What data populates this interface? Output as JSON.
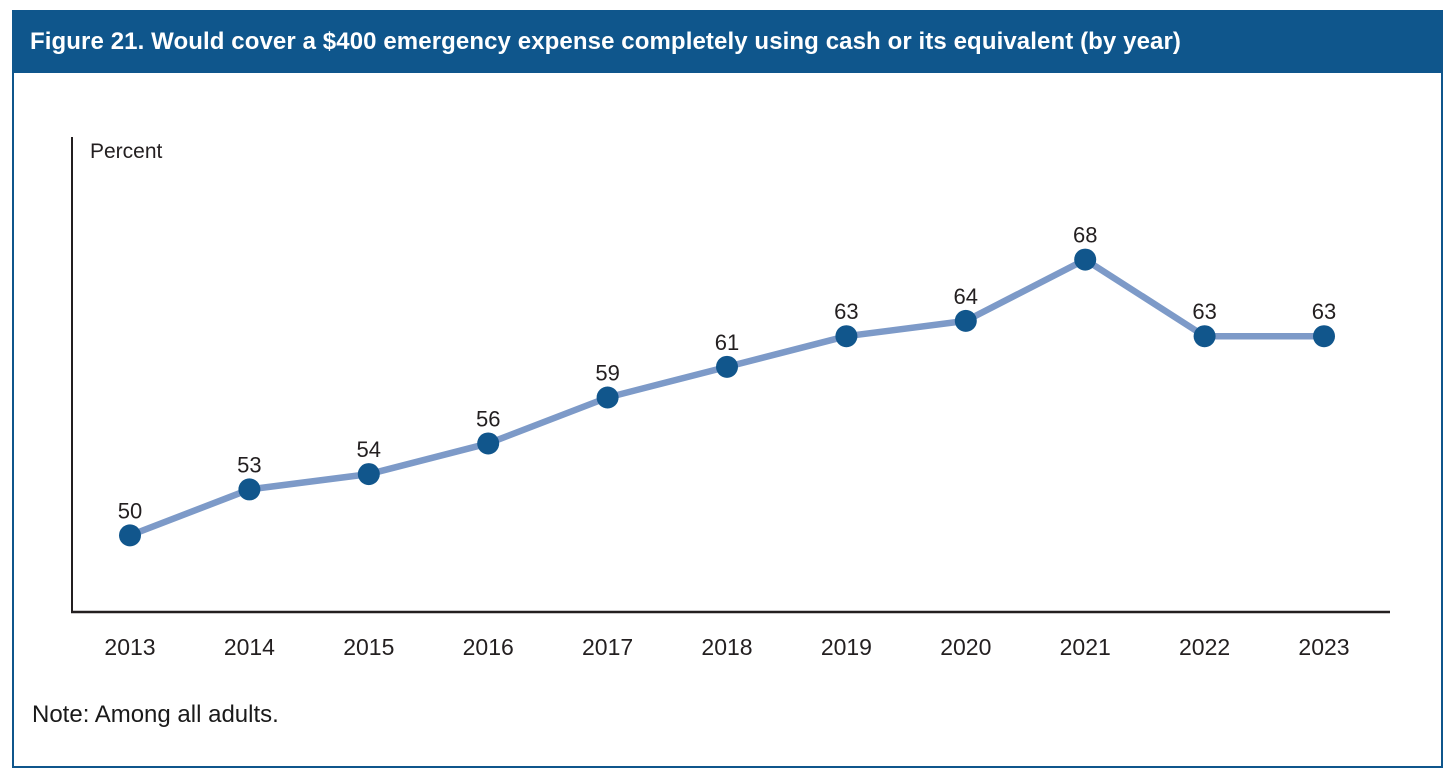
{
  "figure": {
    "title": "Figure 21. Would cover a $400 emergency expense completely using cash or its equivalent (by year)",
    "note": "Note: Among all adults."
  },
  "colors": {
    "header_bg": "#0F568C",
    "header_text": "#FFFFFF",
    "border": "#0F568C",
    "line": "#7D9AC8",
    "point": "#11568C",
    "axis": "#231F20",
    "label": "#231F20"
  },
  "chart_data": {
    "type": "line",
    "title": "Figure 21. Would cover a $400 emergency expense completely using cash or its equivalent (by year)",
    "xlabel": "",
    "ylabel": "Percent",
    "categories": [
      "2013",
      "2014",
      "2015",
      "2016",
      "2017",
      "2018",
      "2019",
      "2020",
      "2021",
      "2022",
      "2023"
    ],
    "values": [
      50,
      53,
      54,
      56,
      59,
      61,
      63,
      64,
      68,
      63,
      63
    ],
    "ylim": [
      45,
      76
    ],
    "grid": false,
    "legend": "none",
    "point_labels": true
  }
}
